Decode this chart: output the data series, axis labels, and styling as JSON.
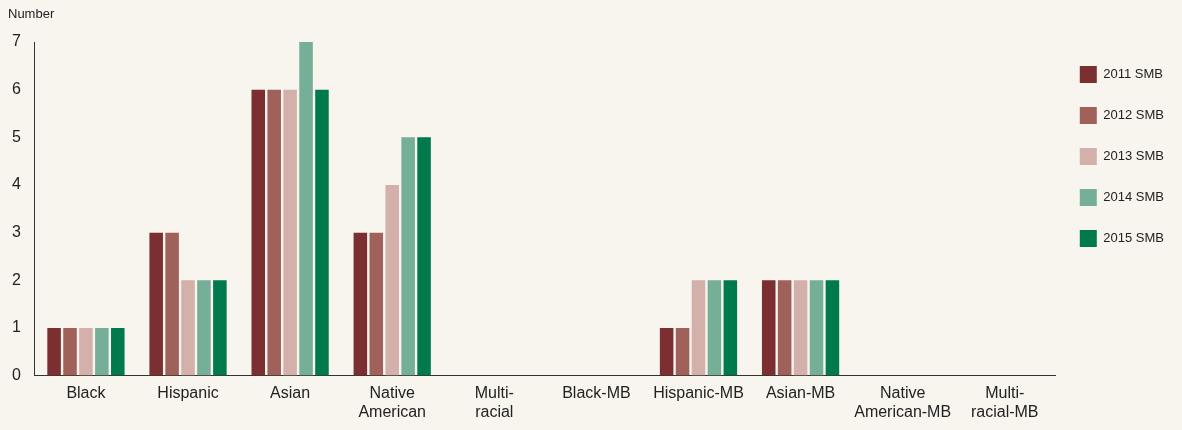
{
  "chart_data": {
    "type": "bar",
    "ylabel": "Number",
    "categories": [
      "Black",
      "Hispanic",
      "Asian",
      "Native American",
      "Multi-racial",
      "Black-MB",
      "Hispanic-MB",
      "Asian-MB",
      "Native American-MB",
      "Multi-racial-MB"
    ],
    "series": [
      {
        "name": "2011 SMB",
        "color": "#7b2f30",
        "values": [
          1,
          3,
          6,
          3,
          0,
          0,
          1,
          2,
          0,
          0
        ]
      },
      {
        "name": "2012 SMB",
        "color": "#a0615a",
        "values": [
          1,
          3,
          6,
          3,
          0,
          0,
          1,
          2,
          0,
          0
        ]
      },
      {
        "name": "2013 SMB",
        "color": "#d3b0a9",
        "values": [
          1,
          2,
          6,
          4,
          0,
          0,
          2,
          2,
          0,
          0
        ]
      },
      {
        "name": "2014 SMB",
        "color": "#76af98",
        "values": [
          1,
          2,
          7,
          5,
          0,
          0,
          2,
          2,
          0,
          0
        ]
      },
      {
        "name": "2015 SMB",
        "color": "#007a4d",
        "values": [
          1,
          2,
          6,
          5,
          0,
          0,
          2,
          2,
          0,
          0
        ]
      }
    ],
    "ylim": [
      0,
      7
    ],
    "yticks": [
      0,
      1,
      2,
      3,
      4,
      5,
      6,
      7
    ],
    "grid": false,
    "legend": "top right"
  }
}
